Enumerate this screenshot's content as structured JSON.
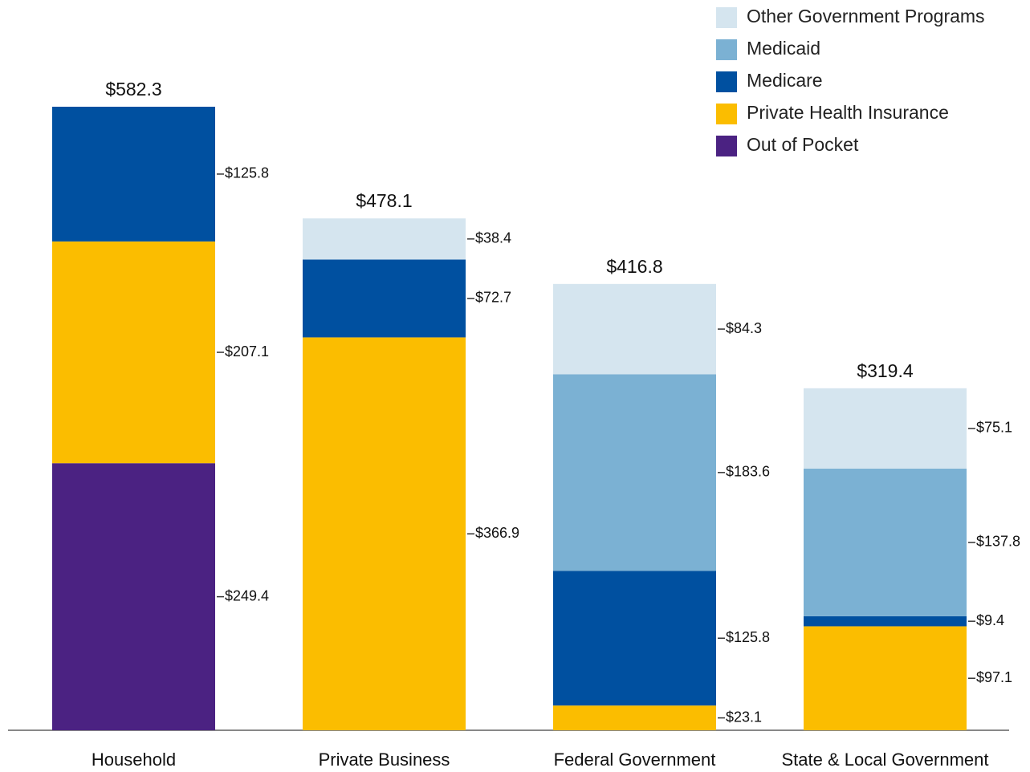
{
  "chart_data": {
    "type": "stacked_bar",
    "categories": [
      "Household",
      "Private Business",
      "Federal Government",
      "State & Local Government"
    ],
    "series": [
      {
        "name": "Out of Pocket",
        "color": "#4b2282",
        "values": [
          249.4,
          null,
          null,
          null
        ],
        "value_labels": [
          "$249.4",
          null,
          null,
          null
        ]
      },
      {
        "name": "Private Health Insurance",
        "color": "#fbbd00",
        "values": [
          207.1,
          366.9,
          23.1,
          97.1
        ],
        "value_labels": [
          "$207.1",
          "$366.9",
          "$23.1",
          "$97.1"
        ]
      },
      {
        "name": "Medicare",
        "color": "#0050a0",
        "values": [
          125.8,
          72.7,
          125.8,
          9.4
        ],
        "value_labels": [
          "$125.8",
          "$72.7",
          "$125.8",
          "$9.4"
        ]
      },
      {
        "name": "Medicaid",
        "color": "#7bb1d3",
        "values": [
          null,
          null,
          183.6,
          137.8
        ],
        "value_labels": [
          null,
          null,
          "$183.6",
          "$137.8"
        ]
      },
      {
        "name": "Other Government Programs",
        "color": "#d5e5ef",
        "values": [
          null,
          38.4,
          84.3,
          75.1
        ],
        "value_labels": [
          null,
          "$38.4",
          "$84.3",
          "$75.1"
        ]
      }
    ],
    "totals": [
      582.3,
      478.1,
      416.8,
      319.4
    ],
    "total_labels": [
      "$582.3",
      "$478.1",
      "$416.8",
      "$319.4"
    ],
    "legend": "top-right"
  }
}
